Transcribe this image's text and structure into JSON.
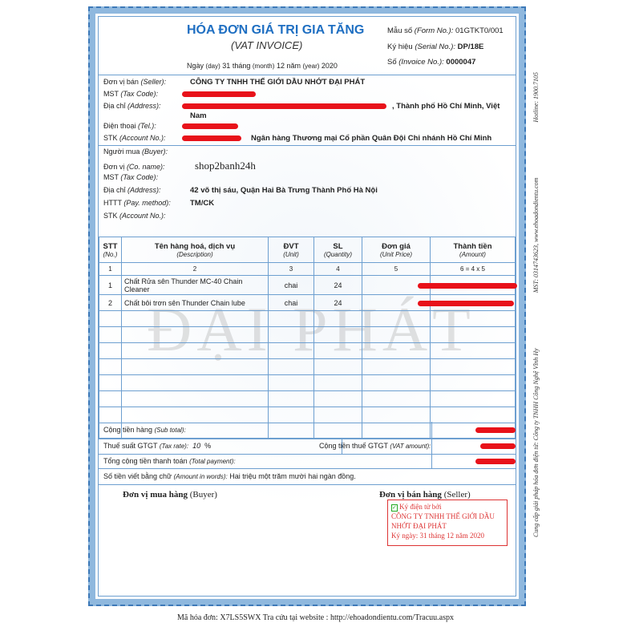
{
  "header": {
    "title": "HÓA ĐƠN GIÁ TRỊ GIA TĂNG",
    "subtitle": "(VAT INVOICE)",
    "date": {
      "day_label": "Ngày",
      "day_en": "(day)",
      "day": "31",
      "month_label": "tháng",
      "month_en": "(month)",
      "month": "12",
      "year_label": "năm",
      "year_en": "(year)",
      "year": "2020"
    },
    "form_label": "Mẫu số",
    "form_en": "(Form No.):",
    "form_no": "01GTKT0/001",
    "serial_label": "Ký hiệu",
    "serial_en": "(Serial No.):",
    "serial_no": "DP/18E",
    "invoice_label": "Số",
    "invoice_en": "(Invoice No.):",
    "invoice_no": "0000047"
  },
  "seller": {
    "name_label": "Đơn vị bán",
    "name_en": "(Seller):",
    "name": "CÔNG TY TNHH THẾ GIỚI DẦU NHỚT ĐẠI PHÁT",
    "tax_label": "MST",
    "tax_en": "(Tax Code):",
    "address_label": "Địa chỉ",
    "address_en": "(Address):",
    "address_visible": ", Thành phố Hồ Chí Minh, Việt",
    "address_line2": "Nam",
    "tel_label": "Điện thoại",
    "tel_en": "(Tel.):",
    "account_label": "STK",
    "account_en": "(Account No.):",
    "bank": "Ngân hàng Thương mại Cổ phần Quân Đội Chi nhánh Hồ Chí Minh"
  },
  "buyer": {
    "buyer_label": "Người mua",
    "buyer_en": "(Buyer):",
    "co_label": "Đơn vị",
    "co_en": "(Co. name):",
    "co_name": "shop2banh24h",
    "tax_label": "MST",
    "tax_en": "(Tax Code):",
    "address_label": "Địa chỉ",
    "address_en": "(Address):",
    "address": "42 võ thị sáu, Quận Hai Bà Trưng Thành Phố Hà Nội",
    "pay_label": "HTTT",
    "pay_en": "(Pay. method):",
    "pay_method": "TM/CK",
    "account_label": "STK",
    "account_en": "(Account No.):"
  },
  "table": {
    "columns": [
      {
        "label": "STT",
        "en": "(No.)"
      },
      {
        "label": "Tên hàng hoá, dịch vụ",
        "en": "(Description)"
      },
      {
        "label": "ĐVT",
        "en": "(Unit)"
      },
      {
        "label": "SL",
        "en": "(Quantity)"
      },
      {
        "label": "Đơn giá",
        "en": "(Unit Price)"
      },
      {
        "label": "Thành tiền",
        "en": "(Amount)"
      }
    ],
    "index": [
      "1",
      "2",
      "3",
      "4",
      "5",
      "6 = 4 x 5"
    ],
    "rows": [
      {
        "no": "1",
        "desc": "Chất Rửa sên Thunder MC-40 Chain Cleaner",
        "unit": "chai",
        "qty": "24"
      },
      {
        "no": "2",
        "desc": "Chất bôi trơn sên Thunder Chain lube",
        "unit": "chai",
        "qty": "24"
      }
    ]
  },
  "totals": {
    "subtotal_label": "Cộng tiền hàng",
    "subtotal_en": "(Sub total):",
    "taxrate_label": "Thuế suất GTGT",
    "taxrate_en": "(Tax rate):",
    "tax_rate": "10",
    "tax_unit": "%",
    "vat_label": "Cộng tiền thuế GTGT",
    "vat_en": "(VAT amount):",
    "total_label": "Tổng cộng tiền thanh toán",
    "total_en": "(Total payment):",
    "words_label": "Số tiền viết bằng chữ",
    "words_en": "(Amount in words):",
    "words": "Hai triệu một trăm mười hai ngàn đồng."
  },
  "signatures": {
    "buyer": "Đơn vị mua hàng",
    "buyer_en": "(Buyer)",
    "seller": "Đơn vị bán hàng",
    "seller_en": "(Seller)",
    "stamp_line1": "Ký điện tử bởi",
    "stamp_line2": "CÔNG TY TNHH THẾ GIỚI DẦU",
    "stamp_line3": "NHỚT ĐẠI PHÁT",
    "stamp_line4": "Ký ngày: 31 tháng 12 năm 2020"
  },
  "watermark": "ĐẠI PHÁT",
  "side_text": {
    "provider": "Cung cấp giải pháp hóa đơn điện tử: Công ty TNHH Công Nghệ Vĩnh Hy",
    "mst": "MST: 0314743623, www.ehoadondientu.com",
    "hotline": "Hotline: 1900.7105"
  },
  "footer": "Mã hóa đơn: X7LS5SWX Tra cứu tại website : http://ehoadondientu.com/Tracuu.aspx",
  "colors": {
    "title": "#1f6fc2",
    "border": "#6d9fd0",
    "redaction": "#e8121a",
    "stamp": "#dd3333"
  }
}
